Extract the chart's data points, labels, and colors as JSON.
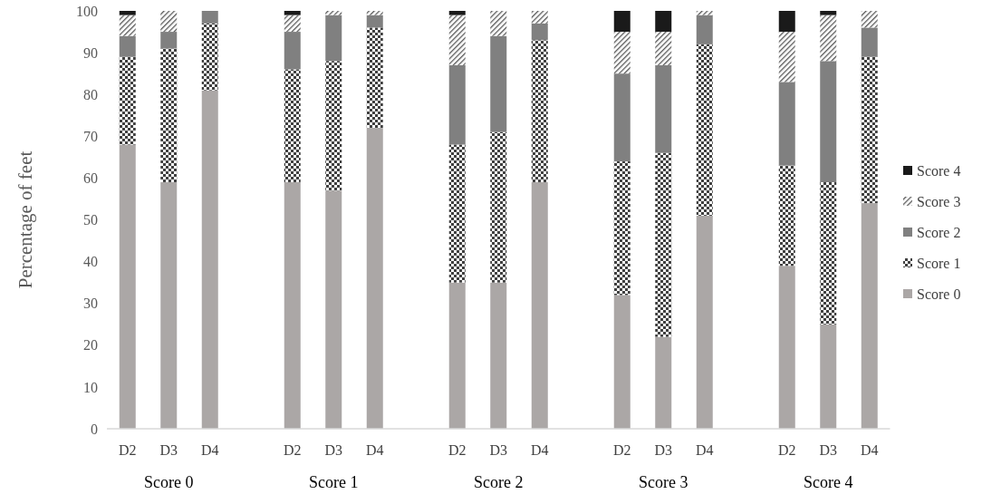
{
  "chart_data": {
    "type": "bar",
    "stacked": true,
    "ylabel": "Percentage of feet",
    "categories": [
      "D2",
      "D3",
      "D4",
      "D2",
      "D3",
      "D4",
      "D2",
      "D3",
      "D4",
      "D2",
      "D3",
      "D4",
      "D2",
      "D3",
      "D4"
    ],
    "annotations": [
      "Score 0",
      "Score 1",
      "Score 2",
      "Score 3",
      "Score 4"
    ],
    "series": [
      {
        "name": "Score 0",
        "color": "#aba7a6",
        "values": [
          68,
          59,
          81,
          59,
          57,
          72,
          35,
          35,
          59,
          32,
          22,
          51,
          39,
          25,
          54
        ]
      },
      {
        "name": "Score 1",
        "color": "#404040",
        "values": [
          21,
          32,
          16,
          27,
          31,
          24,
          33,
          36,
          34,
          32,
          44,
          41,
          24,
          34,
          35
        ]
      },
      {
        "name": "Score 2",
        "color": "#808080",
        "values": [
          5,
          4,
          3,
          9,
          11,
          3,
          19,
          23,
          4,
          21,
          21,
          7,
          20,
          29,
          7
        ]
      },
      {
        "name": "Score 3",
        "color": "#595959",
        "values": [
          5,
          5,
          0,
          4,
          1,
          1,
          12,
          6,
          3,
          10,
          8,
          1,
          12,
          11,
          4
        ]
      },
      {
        "name": "Score 4",
        "color": "#1a1a1a",
        "values": [
          1,
          0,
          0,
          1,
          0,
          0,
          1,
          0,
          0,
          5,
          5,
          0,
          5,
          1,
          0
        ]
      }
    ],
    "ylim": [
      0,
      100
    ],
    "yticks": [
      0,
      10,
      20,
      30,
      40,
      50,
      60,
      70,
      80,
      90,
      100
    ],
    "legend": "right",
    "grid": false
  }
}
